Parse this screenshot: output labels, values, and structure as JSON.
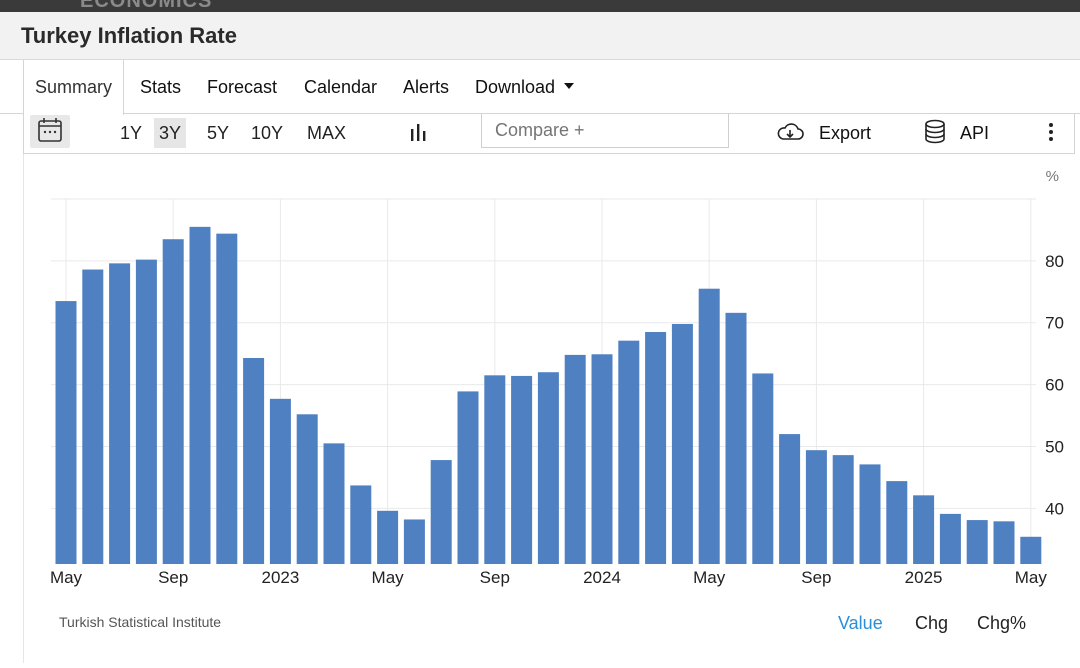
{
  "brand": "ECONOMICS",
  "page_title": "Turkey Inflation Rate",
  "tabs": [
    {
      "label": "Summary"
    },
    {
      "label": "Stats"
    },
    {
      "label": "Forecast"
    },
    {
      "label": "Calendar"
    },
    {
      "label": "Alerts"
    },
    {
      "label": "Download"
    }
  ],
  "toolbar": {
    "ranges": [
      "1Y",
      "3Y",
      "5Y",
      "10Y",
      "MAX"
    ],
    "active_range": "3Y",
    "compare_placeholder": "Compare +",
    "export_label": "Export",
    "api_label": "API"
  },
  "colors": {
    "bar": "#4f81c2",
    "accent": "#2a8fdb",
    "grid": "#e9e9e9"
  },
  "chart_data": {
    "type": "bar",
    "ylabel": "%",
    "ylim": [
      31,
      90
    ],
    "yticks": [
      40,
      50,
      60,
      70,
      80
    ],
    "y_axis_side": "right",
    "grid": true,
    "x": [
      "2022-05",
      "2022-06",
      "2022-07",
      "2022-08",
      "2022-09",
      "2022-10",
      "2022-11",
      "2022-12",
      "2023-01",
      "2023-02",
      "2023-03",
      "2023-04",
      "2023-05",
      "2023-06",
      "2023-07",
      "2023-08",
      "2023-09",
      "2023-10",
      "2023-11",
      "2023-12",
      "2024-01",
      "2024-02",
      "2024-03",
      "2024-04",
      "2024-05",
      "2024-06",
      "2024-07",
      "2024-08",
      "2024-09",
      "2024-10",
      "2024-11",
      "2024-12",
      "2025-01",
      "2025-02",
      "2025-03",
      "2025-04",
      "2025-05"
    ],
    "values": [
      73.5,
      78.6,
      79.6,
      80.2,
      83.5,
      85.5,
      84.4,
      64.3,
      57.7,
      55.2,
      50.5,
      43.7,
      39.6,
      38.2,
      47.8,
      58.9,
      61.5,
      61.4,
      62.0,
      64.8,
      64.9,
      67.1,
      68.5,
      69.8,
      75.5,
      71.6,
      61.8,
      52.0,
      49.4,
      48.6,
      47.1,
      44.4,
      42.1,
      39.1,
      38.1,
      37.9,
      35.4
    ],
    "xticks": [
      {
        "label": "May",
        "index": 0
      },
      {
        "label": "Sep",
        "index": 4
      },
      {
        "label": "2023",
        "index": 8
      },
      {
        "label": "May",
        "index": 12
      },
      {
        "label": "Sep",
        "index": 16
      },
      {
        "label": "2024",
        "index": 20
      },
      {
        "label": "May",
        "index": 24
      },
      {
        "label": "Sep",
        "index": 28
      },
      {
        "label": "2025",
        "index": 32
      },
      {
        "label": "May",
        "index": 36
      }
    ]
  },
  "footer": {
    "source": "Turkish Statistical Institute",
    "value_tabs": [
      "Value",
      "Chg",
      "Chg%"
    ],
    "active_value_tab": "Value"
  }
}
